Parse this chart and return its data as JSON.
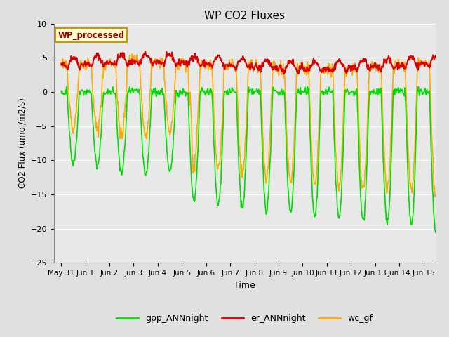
{
  "title": "WP CO2 Fluxes",
  "xlabel": "Time",
  "ylabel_raw": "CO2 Flux (umol/m2/s)",
  "ylim": [
    -25,
    10
  ],
  "yticks": [
    -25,
    -20,
    -15,
    -10,
    -5,
    0,
    5,
    10
  ],
  "x_tick_labels": [
    "May 31",
    "Jun 1",
    "Jun 2",
    "Jun 3",
    "Jun 4",
    "Jun 5",
    "Jun 6",
    "Jun 7",
    "Jun 8",
    "Jun 9",
    "Jun 10",
    "Jun 11",
    "Jun 12",
    "Jun 13",
    "Jun 14",
    "Jun 15"
  ],
  "legend_label": "WP_processed",
  "line_colors": {
    "gpp": "#00dd00",
    "er": "#dd0000",
    "wc": "#ffaa00"
  },
  "line_labels": [
    "gpp_ANNnight",
    "er_ANNnight",
    "wc_gf"
  ],
  "plot_bg_color": "#e8e8e8",
  "annotation_bg": "#ffffcc",
  "annotation_text_color": "#880000",
  "annotation_edge_color": "#cc9900"
}
